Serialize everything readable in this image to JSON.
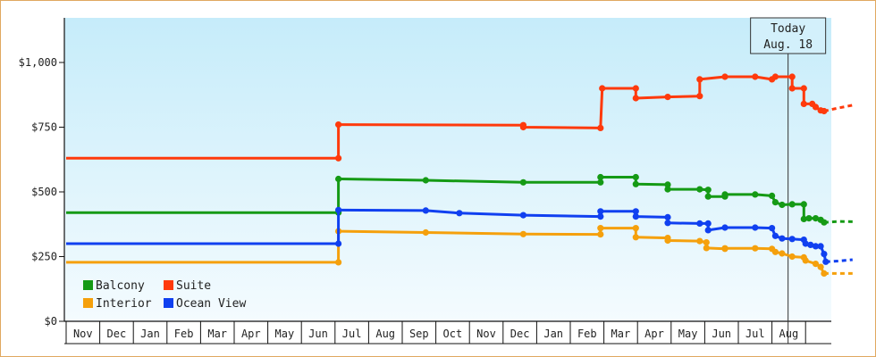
{
  "chart_data": {
    "type": "line",
    "title": "",
    "xlabel": "",
    "ylabel": "",
    "ylim": [
      0,
      1150
    ],
    "y_ticks": [
      "$0",
      "$250",
      "$500",
      "$750",
      "$1,000"
    ],
    "y_tick_values": [
      0,
      250,
      500,
      750,
      1000
    ],
    "x_ticks": [
      "Nov",
      "Dec",
      "Jan",
      "Feb",
      "Mar",
      "Apr",
      "May",
      "Jun",
      "Jul",
      "Aug",
      "Sep",
      "Oct",
      "Nov",
      "Dec",
      "Jan",
      "Feb",
      "Mar",
      "Apr",
      "May",
      "Jun",
      "Jul",
      "Aug"
    ],
    "x_unit": "month index (0 = Nov)",
    "grid": false,
    "legend_placement": "bottom-left",
    "today_marker": {
      "line1": "Today",
      "line2": "Aug. 18",
      "x": 21.48
    },
    "series": [
      {
        "name": "Balcony",
        "color": "#159a15",
        "points": [
          [
            0,
            420
          ],
          [
            8.1,
            420
          ],
          [
            8.1,
            550
          ],
          [
            10.7,
            545
          ],
          [
            13.6,
            537
          ],
          [
            15.9,
            537
          ],
          [
            15.9,
            557
          ],
          [
            16.95,
            557
          ],
          [
            16.95,
            530
          ],
          [
            17.9,
            528
          ],
          [
            17.9,
            510
          ],
          [
            18.85,
            510
          ],
          [
            19.1,
            508
          ],
          [
            19.1,
            482
          ],
          [
            19.6,
            482
          ],
          [
            19.6,
            490
          ],
          [
            20.5,
            490
          ],
          [
            21.0,
            485
          ],
          [
            21.1,
            460
          ],
          [
            21.3,
            450
          ],
          [
            21.6,
            452
          ],
          [
            21.95,
            452
          ],
          [
            21.95,
            395
          ],
          [
            22.1,
            398
          ],
          [
            22.3,
            398
          ],
          [
            22.45,
            392
          ],
          [
            22.55,
            382
          ]
        ],
        "projection": [
          [
            22.55,
            382
          ],
          [
            23.0,
            386
          ],
          [
            23.4,
            385
          ]
        ]
      },
      {
        "name": "Interior",
        "color": "#f5a00c",
        "points": [
          [
            0,
            228
          ],
          [
            8.1,
            228
          ],
          [
            8.1,
            348
          ],
          [
            10.7,
            343
          ],
          [
            13.6,
            337
          ],
          [
            15.9,
            336
          ],
          [
            15.9,
            360
          ],
          [
            16.95,
            360
          ],
          [
            16.95,
            325
          ],
          [
            17.9,
            322
          ],
          [
            17.9,
            312
          ],
          [
            18.85,
            310
          ],
          [
            19.05,
            305
          ],
          [
            19.05,
            283
          ],
          [
            19.6,
            280
          ],
          [
            19.6,
            282
          ],
          [
            20.5,
            282
          ],
          [
            21.0,
            280
          ],
          [
            21.1,
            268
          ],
          [
            21.3,
            262
          ],
          [
            21.6,
            250
          ],
          [
            21.95,
            247
          ],
          [
            22.0,
            235
          ],
          [
            22.3,
            222
          ],
          [
            22.45,
            210
          ],
          [
            22.55,
            185
          ]
        ],
        "projection": [
          [
            22.55,
            185
          ],
          [
            23.0,
            185
          ],
          [
            23.4,
            185
          ]
        ]
      },
      {
        "name": "Suite",
        "color": "#ff3a0c",
        "points": [
          [
            0,
            630
          ],
          [
            8.1,
            630
          ],
          [
            8.1,
            760
          ],
          [
            13.6,
            758
          ],
          [
            13.6,
            750
          ],
          [
            15.9,
            747
          ],
          [
            15.95,
            900
          ],
          [
            16.95,
            900
          ],
          [
            16.95,
            862
          ],
          [
            17.9,
            867
          ],
          [
            18.85,
            870
          ],
          [
            18.85,
            935
          ],
          [
            19.6,
            945
          ],
          [
            20.5,
            945
          ],
          [
            21.0,
            935
          ],
          [
            21.1,
            945
          ],
          [
            21.6,
            945
          ],
          [
            21.6,
            900
          ],
          [
            21.95,
            900
          ],
          [
            21.95,
            840
          ],
          [
            22.2,
            840
          ],
          [
            22.3,
            828
          ],
          [
            22.45,
            815
          ],
          [
            22.55,
            812
          ]
        ],
        "projection": [
          [
            22.55,
            812
          ],
          [
            23.0,
            825
          ],
          [
            23.4,
            835
          ]
        ]
      },
      {
        "name": "Ocean View",
        "color": "#1040f0",
        "points": [
          [
            0,
            300
          ],
          [
            8.1,
            300
          ],
          [
            8.1,
            430
          ],
          [
            10.7,
            428
          ],
          [
            11.7,
            418
          ],
          [
            13.6,
            410
          ],
          [
            15.9,
            405
          ],
          [
            15.9,
            425
          ],
          [
            16.95,
            425
          ],
          [
            16.95,
            405
          ],
          [
            17.9,
            402
          ],
          [
            17.9,
            380
          ],
          [
            18.85,
            378
          ],
          [
            19.1,
            378
          ],
          [
            19.1,
            352
          ],
          [
            19.6,
            362
          ],
          [
            20.5,
            362
          ],
          [
            21.0,
            360
          ],
          [
            21.1,
            330
          ],
          [
            21.3,
            320
          ],
          [
            21.6,
            318
          ],
          [
            21.95,
            315
          ],
          [
            22.0,
            300
          ],
          [
            22.15,
            295
          ],
          [
            22.3,
            290
          ],
          [
            22.45,
            290
          ],
          [
            22.55,
            260
          ],
          [
            22.6,
            230
          ]
        ],
        "projection": [
          [
            22.6,
            230
          ],
          [
            23.0,
            233
          ],
          [
            23.4,
            238
          ]
        ]
      }
    ]
  }
}
